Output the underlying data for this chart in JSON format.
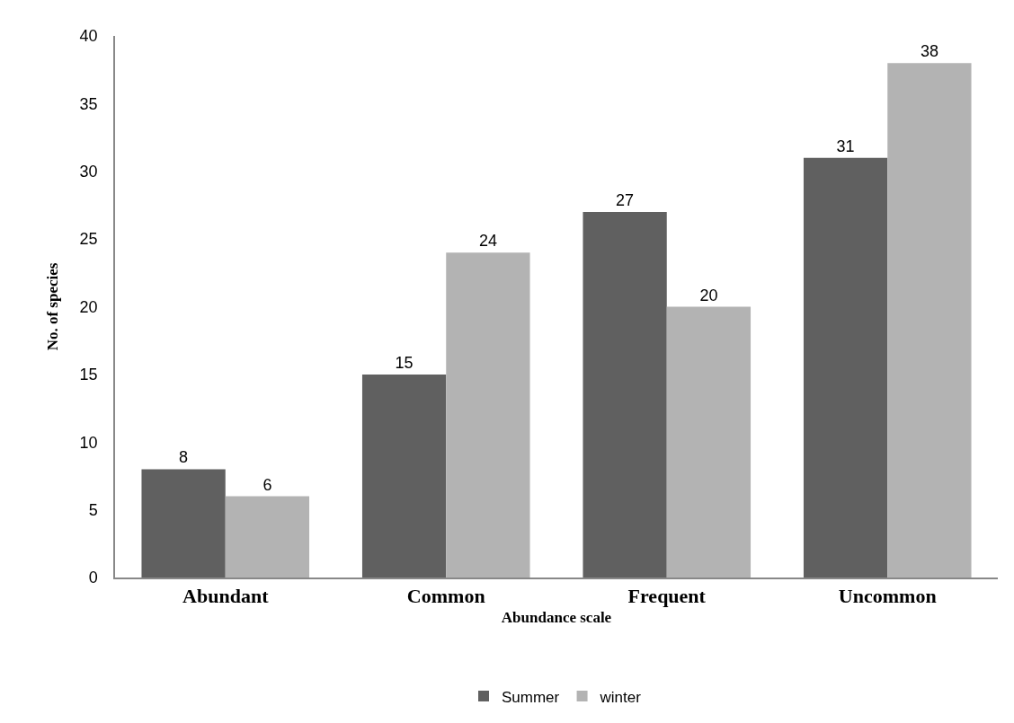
{
  "chart_data": {
    "type": "bar",
    "xlabel": "Abundance scale",
    "ylabel": "No. of species",
    "categories": [
      "Abundant",
      "Common",
      "Frequent",
      "Uncommon"
    ],
    "series": [
      {
        "name": "Summer",
        "color": "#606060",
        "values": [
          8,
          15,
          27,
          31
        ]
      },
      {
        "name": "winter",
        "color": "#b3b3b3",
        "values": [
          6,
          24,
          20,
          38
        ]
      }
    ],
    "ylim": [
      0,
      40
    ],
    "yticks": [
      0,
      5,
      10,
      15,
      20,
      25,
      30,
      35,
      40
    ],
    "grid": false,
    "legend": "bottom",
    "data_labels": true
  }
}
